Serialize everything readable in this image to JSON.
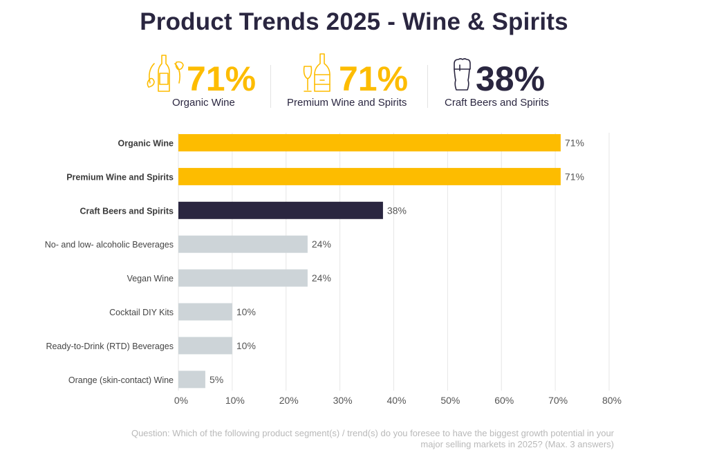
{
  "title": "Product Trends 2025 - Wine & Spirits",
  "kpis": [
    {
      "icon": "organic-wine-bottle-icon",
      "value": "71%",
      "label": "Organic Wine",
      "color": "#FDBC00"
    },
    {
      "icon": "champagne-bottle-glass-icon",
      "value": "71%",
      "label": "Premium Wine and Spirits",
      "color": "#FDBC00"
    },
    {
      "icon": "beer-glass-icon",
      "value": "38%",
      "label": "Craft Beers and Spirits",
      "color": "#2A2640"
    }
  ],
  "colors": {
    "highlight": "#FDBC00",
    "dark": "#2A2640",
    "muted": "#CDD4D8",
    "grid": "#E6E6E6"
  },
  "chart_data": {
    "type": "bar",
    "orientation": "horizontal",
    "title": "",
    "xlabel": "",
    "ylabel": "",
    "xlim": [
      0,
      80
    ],
    "xticks": [
      0,
      10,
      20,
      30,
      40,
      50,
      60,
      70,
      80
    ],
    "xtick_labels": [
      "0%",
      "10%",
      "20%",
      "30%",
      "40%",
      "50%",
      "60%",
      "70%",
      "80%"
    ],
    "grid": true,
    "categories": [
      "Organic Wine",
      "Premium Wine and Spirits",
      "Craft Beers and Spirits",
      "No- and low- alcoholic Beverages",
      "Vegan Wine",
      "Cocktail DIY Kits",
      "Ready-to-Drink (RTD) Beverages",
      "Orange (skin-contact) Wine"
    ],
    "values": [
      71,
      71,
      38,
      24,
      24,
      10,
      10,
      5
    ],
    "value_labels": [
      "71%",
      "71%",
      "38%",
      "24%",
      "24%",
      "10%",
      "10%",
      "5%"
    ],
    "bar_styles": [
      "highlight",
      "highlight",
      "dark",
      "muted",
      "muted",
      "muted",
      "muted",
      "muted"
    ],
    "bold_categories": [
      true,
      true,
      true,
      false,
      false,
      false,
      false,
      false
    ]
  },
  "footnote": {
    "line1": "Question: Which of the following product segment(s) / trend(s) do you foresee to have the biggest growth potential in your",
    "line2": "major selling markets in 2025? (Max. 3 answers)"
  }
}
